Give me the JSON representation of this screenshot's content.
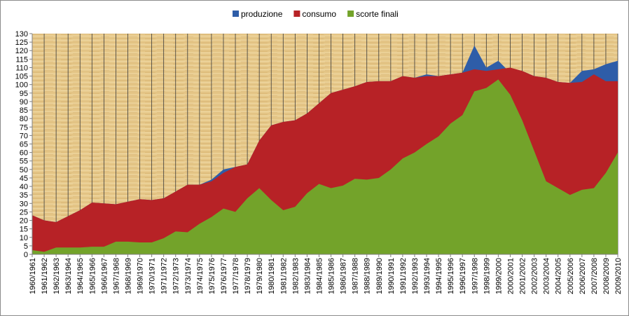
{
  "chart_data": {
    "type": "area",
    "title": "",
    "xlabel": "",
    "ylabel": "",
    "ylim": [
      0,
      130
    ],
    "y_ticks": [
      0,
      5,
      10,
      15,
      20,
      25,
      30,
      35,
      40,
      45,
      50,
      55,
      60,
      65,
      70,
      75,
      80,
      85,
      90,
      95,
      100,
      105,
      110,
      115,
      120,
      125,
      130
    ],
    "grid": "vertical",
    "legend_position": "top",
    "background": "parchment-texture",
    "categories": [
      "1960/1961",
      "1961/1962",
      "1962/1963",
      "1963/1964",
      "1964/1965",
      "1965/1966",
      "1966/1967",
      "1967/1968",
      "1968/1969",
      "1969/1970",
      "1970/1971",
      "1971/1972",
      "1972/1973",
      "1973/1974",
      "1974/1975",
      "1975/1976",
      "1976/1977",
      "1977/1978",
      "1978/1979",
      "1979/1980",
      "1980/1981",
      "1981/1982",
      "1982/1983",
      "1983/1984",
      "1984/1985",
      "1985/1986",
      "1986/1987",
      "1987/1988",
      "1988/1989",
      "1989/1990",
      "1990/1991",
      "1991/1992",
      "1992/1993",
      "1993/1994",
      "1994/1995",
      "1995/1996",
      "1996/1997",
      "1997/1998",
      "1998/1999",
      "1999/2000",
      "2000/2001",
      "2001/2002",
      "2002/2003",
      "2003/2004",
      "2004/2005",
      "2005/2006",
      "2006/2007",
      "2007/2008",
      "2008/2009",
      "2009/2010"
    ],
    "series": [
      {
        "name": "produzione",
        "color": "#2e5da8",
        "values": [
          23,
          20,
          19,
          22.5,
          26,
          30.5,
          30,
          29.5,
          31,
          32.5,
          32,
          33,
          37,
          41,
          41,
          44,
          50,
          51.5,
          53,
          67,
          76,
          78,
          79,
          83,
          89,
          95,
          97,
          99,
          101.5,
          102,
          102,
          105,
          104,
          106,
          105,
          106,
          107,
          123,
          110,
          114,
          107,
          108,
          105,
          104,
          101.5,
          101,
          108,
          109,
          112,
          114
        ]
      },
      {
        "name": "consumo",
        "color": "#b72226",
        "values": [
          23,
          20,
          19,
          22.5,
          26,
          30.5,
          30,
          29.5,
          31,
          32.5,
          32,
          33,
          37,
          41,
          41,
          43,
          48,
          51.5,
          53,
          67,
          76,
          78,
          79,
          83,
          89,
          95,
          97,
          99,
          101.5,
          102,
          102,
          105,
          104,
          105,
          105,
          106,
          107,
          109,
          108,
          109,
          110,
          108,
          105,
          104,
          101.5,
          101,
          101.5,
          106,
          102,
          102
        ]
      },
      {
        "name": "scorte finali",
        "color": "#73a32a",
        "values": [
          2.5,
          1.5,
          4,
          4,
          4,
          4.5,
          4.5,
          7.5,
          7.5,
          7,
          7,
          9.5,
          13.5,
          13,
          18,
          22,
          27,
          25,
          33,
          39,
          32,
          26,
          28,
          36,
          41.5,
          39,
          40.5,
          44.5,
          44,
          45,
          50,
          56.5,
          60,
          65,
          69.5,
          77,
          82,
          96,
          98,
          103,
          94,
          79,
          61,
          43,
          39,
          35,
          38,
          39,
          48,
          60
        ]
      }
    ]
  }
}
